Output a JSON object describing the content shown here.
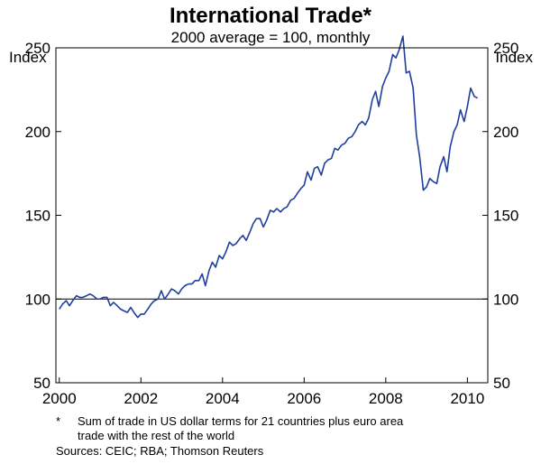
{
  "chart_data": {
    "type": "line",
    "title": "International Trade*",
    "subtitle": "2000 average = 100, monthly",
    "ylabel_left": "Index",
    "ylabel_right": "Index",
    "xlabel": "",
    "ylim": [
      50,
      250
    ],
    "yticks": [
      50,
      100,
      150,
      200,
      250
    ],
    "xlim": [
      1999.917,
      2010.5
    ],
    "xticks": [
      2000,
      2002,
      2004,
      2006,
      2008,
      2010
    ],
    "xtick_labels": [
      "2000",
      "2002",
      "2004",
      "2006",
      "2008",
      "2010"
    ],
    "reference_line": 100,
    "line_color": "#1f3f9e",
    "series": [
      {
        "x": [
          2000.0,
          2000.08,
          2000.17,
          2000.25,
          2000.33,
          2000.42,
          2000.5,
          2000.58,
          2000.67,
          2000.75,
          2000.83,
          2000.92,
          2001.0,
          2001.08,
          2001.17,
          2001.25,
          2001.33,
          2001.42,
          2001.5,
          2001.58,
          2001.67,
          2001.75,
          2001.83,
          2001.92,
          2002.0,
          2002.08,
          2002.17,
          2002.25,
          2002.33,
          2002.42,
          2002.5,
          2002.58,
          2002.67,
          2002.75,
          2002.83,
          2002.92,
          2003.0,
          2003.08,
          2003.17,
          2003.25,
          2003.33,
          2003.42,
          2003.5,
          2003.58,
          2003.67,
          2003.75,
          2003.83,
          2003.92,
          2004.0,
          2004.08,
          2004.17,
          2004.25,
          2004.33,
          2004.42,
          2004.5,
          2004.58,
          2004.67,
          2004.75,
          2004.83,
          2004.92,
          2005.0,
          2005.08,
          2005.17,
          2005.25,
          2005.33,
          2005.42,
          2005.5,
          2005.58,
          2005.67,
          2005.75,
          2005.83,
          2005.92,
          2006.0,
          2006.08,
          2006.17,
          2006.25,
          2006.33,
          2006.42,
          2006.5,
          2006.58,
          2006.67,
          2006.75,
          2006.83,
          2006.92,
          2007.0,
          2007.08,
          2007.17,
          2007.25,
          2007.33,
          2007.42,
          2007.5,
          2007.58,
          2007.67,
          2007.75,
          2007.83,
          2007.92,
          2008.0,
          2008.08,
          2008.17,
          2008.25,
          2008.33,
          2008.42,
          2008.5,
          2008.58,
          2008.67,
          2008.75,
          2008.83,
          2008.92,
          2009.0,
          2009.08,
          2009.17,
          2009.25,
          2009.33,
          2009.42,
          2009.5,
          2009.58,
          2009.67,
          2009.75,
          2009.83,
          2009.92,
          2010.0,
          2010.08,
          2010.17,
          2010.25
        ],
        "values": [
          94,
          97,
          99,
          96,
          99,
          102,
          101,
          101,
          102,
          103,
          102,
          100,
          100,
          101,
          101,
          96,
          98,
          96,
          94,
          93,
          92,
          95,
          92,
          89,
          91,
          91,
          94,
          97,
          99,
          100,
          105,
          100,
          103,
          106,
          105,
          103,
          106,
          108,
          109,
          109,
          111,
          111,
          115,
          108,
          117,
          122,
          119,
          126,
          124,
          128,
          134,
          132,
          133,
          136,
          138,
          135,
          140,
          145,
          148,
          148,
          143,
          147,
          153,
          152,
          154,
          152,
          154,
          155,
          159,
          160,
          163,
          166,
          168,
          176,
          171,
          178,
          179,
          174,
          181,
          183,
          184,
          190,
          189,
          192,
          193,
          196,
          197,
          200,
          204,
          206,
          204,
          208,
          219,
          224,
          215,
          227,
          232,
          236,
          246,
          244,
          249,
          257,
          235,
          236,
          226,
          198,
          185,
          165,
          167,
          172,
          170,
          169,
          179,
          185,
          176,
          191,
          200,
          204,
          213,
          206,
          215,
          226,
          221,
          220
        ]
      }
    ]
  },
  "footnote": {
    "marker": "*",
    "line1": "Sum of trade in US dollar terms for 21 countries plus euro area",
    "line2": "trade with the rest of the world",
    "sources": "Sources: CEIC; RBA; Thomson Reuters"
  }
}
